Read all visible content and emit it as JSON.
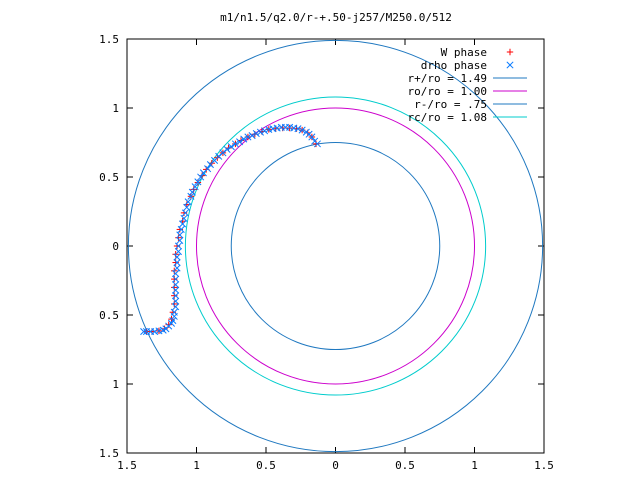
{
  "chart_data": {
    "type": "scatter",
    "title": "m1/n1.5/q2.0/r-+.50-j257/M250.0/512",
    "xlim": [
      -1.5,
      1.5
    ],
    "ylim": [
      -1.5,
      1.5
    ],
    "x_ticks": [
      {
        "value": -1.5,
        "label": "1.5"
      },
      {
        "value": -1.0,
        "label": "1"
      },
      {
        "value": -0.5,
        "label": "0.5"
      },
      {
        "value": 0.0,
        "label": "0"
      },
      {
        "value": 0.5,
        "label": "0.5"
      },
      {
        "value": 1.0,
        "label": "1"
      },
      {
        "value": 1.5,
        "label": "1.5"
      }
    ],
    "y_ticks": [
      {
        "value": 1.5,
        "label": "1.5"
      },
      {
        "value": 1.0,
        "label": "1"
      },
      {
        "value": 0.5,
        "label": "0.5"
      },
      {
        "value": 0.0,
        "label": "0"
      },
      {
        "value": -0.5,
        "label": "0.5"
      },
      {
        "value": -1.0,
        "label": "1"
      },
      {
        "value": -1.5,
        "label": "1.5"
      }
    ],
    "grid": false,
    "legend_position": "top-right",
    "series": [
      {
        "name": "W phase",
        "kind": "points",
        "marker": "plus",
        "color": "#ff0000",
        "points": [
          [
            -0.14,
            0.74
          ],
          [
            -0.17,
            0.79
          ],
          [
            -0.2,
            0.82
          ],
          [
            -0.24,
            0.84
          ],
          [
            -0.28,
            0.85
          ],
          [
            -0.33,
            0.855
          ],
          [
            -0.38,
            0.855
          ],
          [
            -0.43,
            0.85
          ],
          [
            -0.48,
            0.845
          ],
          [
            -0.53,
            0.83
          ],
          [
            -0.58,
            0.81
          ],
          [
            -0.63,
            0.79
          ],
          [
            -0.68,
            0.765
          ],
          [
            -0.72,
            0.74
          ],
          [
            -0.77,
            0.71
          ],
          [
            -0.81,
            0.675
          ],
          [
            -0.85,
            0.64
          ],
          [
            -0.89,
            0.6
          ],
          [
            -0.93,
            0.555
          ],
          [
            -0.96,
            0.51
          ],
          [
            -0.99,
            0.46
          ],
          [
            -1.02,
            0.41
          ],
          [
            -1.04,
            0.36
          ],
          [
            -1.07,
            0.3
          ],
          [
            -1.09,
            0.24
          ],
          [
            -1.1,
            0.18
          ],
          [
            -1.12,
            0.12
          ],
          [
            -1.13,
            0.06
          ],
          [
            -1.14,
            0.0
          ],
          [
            -1.15,
            -0.06
          ],
          [
            -1.15,
            -0.12
          ],
          [
            -1.16,
            -0.18
          ],
          [
            -1.16,
            -0.24
          ],
          [
            -1.16,
            -0.3
          ],
          [
            -1.16,
            -0.36
          ],
          [
            -1.16,
            -0.42
          ],
          [
            -1.17,
            -0.48
          ],
          [
            -1.18,
            -0.53
          ],
          [
            -1.2,
            -0.57
          ],
          [
            -1.23,
            -0.6
          ],
          [
            -1.27,
            -0.615
          ],
          [
            -1.32,
            -0.62
          ],
          [
            -1.36,
            -0.62
          ]
        ]
      },
      {
        "name": "drho phase",
        "kind": "points",
        "marker": "cross",
        "color": "#0a7bff",
        "points": [
          [
            -0.13,
            0.74
          ],
          [
            -0.15,
            0.76
          ],
          [
            -0.17,
            0.79
          ],
          [
            -0.19,
            0.81
          ],
          [
            -0.21,
            0.825
          ],
          [
            -0.24,
            0.84
          ],
          [
            -0.27,
            0.85
          ],
          [
            -0.3,
            0.855
          ],
          [
            -0.33,
            0.86
          ],
          [
            -0.36,
            0.86
          ],
          [
            -0.39,
            0.86
          ],
          [
            -0.42,
            0.855
          ],
          [
            -0.45,
            0.85
          ],
          [
            -0.48,
            0.845
          ],
          [
            -0.51,
            0.835
          ],
          [
            -0.54,
            0.825
          ],
          [
            -0.57,
            0.815
          ],
          [
            -0.6,
            0.8
          ],
          [
            -0.63,
            0.79
          ],
          [
            -0.66,
            0.775
          ],
          [
            -0.69,
            0.755
          ],
          [
            -0.72,
            0.74
          ],
          [
            -0.75,
            0.72
          ],
          [
            -0.78,
            0.7
          ],
          [
            -0.81,
            0.675
          ],
          [
            -0.84,
            0.65
          ],
          [
            -0.87,
            0.62
          ],
          [
            -0.9,
            0.59
          ],
          [
            -0.92,
            0.56
          ],
          [
            -0.95,
            0.53
          ],
          [
            -0.97,
            0.5
          ],
          [
            -0.99,
            0.465
          ],
          [
            -1.01,
            0.43
          ],
          [
            -1.03,
            0.39
          ],
          [
            -1.04,
            0.36
          ],
          [
            -1.06,
            0.32
          ],
          [
            -1.07,
            0.28
          ],
          [
            -1.08,
            0.24
          ],
          [
            -1.09,
            0.2
          ],
          [
            -1.1,
            0.16
          ],
          [
            -1.11,
            0.12
          ],
          [
            -1.12,
            0.08
          ],
          [
            -1.12,
            0.04
          ],
          [
            -1.13,
            0.0
          ],
          [
            -1.13,
            -0.04
          ],
          [
            -1.14,
            -0.08
          ],
          [
            -1.14,
            -0.12
          ],
          [
            -1.14,
            -0.16
          ],
          [
            -1.15,
            -0.2
          ],
          [
            -1.15,
            -0.24
          ],
          [
            -1.15,
            -0.28
          ],
          [
            -1.15,
            -0.32
          ],
          [
            -1.15,
            -0.36
          ],
          [
            -1.15,
            -0.4
          ],
          [
            -1.15,
            -0.44
          ],
          [
            -1.16,
            -0.48
          ],
          [
            -1.16,
            -0.51
          ],
          [
            -1.17,
            -0.54
          ],
          [
            -1.18,
            -0.56
          ],
          [
            -1.2,
            -0.58
          ],
          [
            -1.22,
            -0.6
          ],
          [
            -1.24,
            -0.61
          ],
          [
            -1.27,
            -0.615
          ],
          [
            -1.3,
            -0.62
          ],
          [
            -1.33,
            -0.62
          ],
          [
            -1.36,
            -0.62
          ],
          [
            -1.38,
            -0.62
          ]
        ]
      },
      {
        "name": "r+/ro = 1.49",
        "kind": "circle",
        "radius": 1.49,
        "color": "#1f78c0"
      },
      {
        "name": "ro/ro = 1.00",
        "kind": "circle",
        "radius": 1.0,
        "color": "#cc00cc"
      },
      {
        "name": "r-/ro = .75",
        "kind": "circle",
        "radius": 0.75,
        "color": "#1f78c0"
      },
      {
        "name": "rc/ro = 1.08",
        "kind": "circle",
        "radius": 1.08,
        "color": "#00cccc"
      }
    ]
  }
}
